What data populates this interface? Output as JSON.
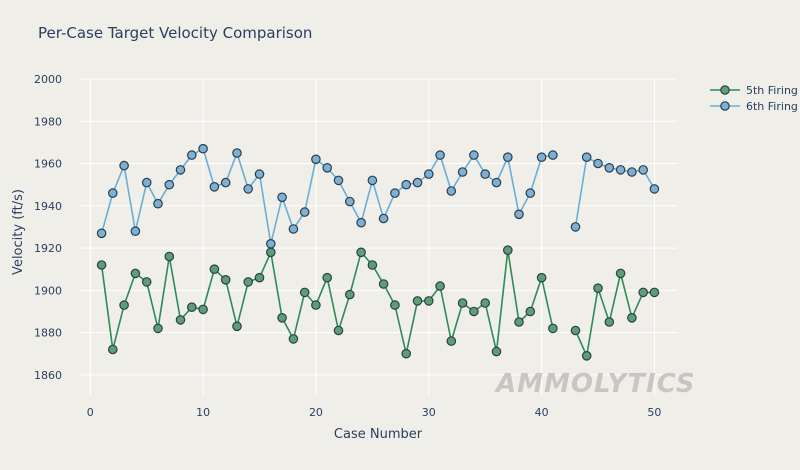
{
  "chart_data": {
    "type": "line",
    "title": "Per-Case Target Velocity Comparison",
    "xlabel": "Case Number",
    "ylabel": "Velocity (ft/s)",
    "xlim": [
      -1,
      52
    ],
    "ylim": [
      1850,
      2000
    ],
    "xticks": [
      0,
      10,
      20,
      30,
      40,
      50
    ],
    "yticks": [
      1860,
      1880,
      1900,
      1920,
      1940,
      1960,
      1980,
      2000
    ],
    "grid": true,
    "legend_position": "top-right",
    "watermark": "AMMOLYTICS",
    "series": [
      {
        "name": "5th Firing",
        "line_color": "#2e8b57",
        "marker_color": "#5f9e73",
        "x": [
          1,
          2,
          3,
          4,
          5,
          6,
          7,
          8,
          9,
          10,
          11,
          12,
          13,
          14,
          15,
          16,
          17,
          18,
          19,
          20,
          21,
          22,
          23,
          24,
          25,
          26,
          27,
          28,
          29,
          30,
          31,
          32,
          33,
          34,
          35,
          36,
          37,
          38,
          39,
          40,
          41,
          43,
          44,
          45,
          46,
          47,
          48,
          49,
          50
        ],
        "y": [
          1912,
          1872,
          1893,
          1908,
          1904,
          1882,
          1916,
          1886,
          1892,
          1891,
          1910,
          1905,
          1883,
          1904,
          1906,
          1918,
          1887,
          1877,
          1899,
          1893,
          1906,
          1881,
          1898,
          1918,
          1912,
          1903,
          1893,
          1870,
          1895,
          1895,
          1902,
          1876,
          1894,
          1890,
          1894,
          1871,
          1919,
          1885,
          1890,
          1906,
          1882,
          1881,
          1869,
          1901,
          1885,
          1908,
          1887,
          1899,
          1899
        ]
      },
      {
        "name": "6th Firing",
        "line_color": "#6aaed6",
        "marker_color": "#7fb0d4",
        "x": [
          1,
          2,
          3,
          4,
          5,
          6,
          7,
          8,
          9,
          10,
          11,
          12,
          13,
          14,
          15,
          16,
          17,
          18,
          19,
          20,
          21,
          22,
          23,
          24,
          25,
          26,
          27,
          28,
          29,
          30,
          31,
          32,
          33,
          34,
          35,
          36,
          37,
          38,
          39,
          40,
          41,
          43,
          44,
          45,
          46,
          47,
          48,
          49,
          50
        ],
        "y": [
          1927,
          1946,
          1959,
          1928,
          1951,
          1941,
          1950,
          1957,
          1964,
          1967,
          1949,
          1951,
          1965,
          1948,
          1955,
          1922,
          1944,
          1929,
          1937,
          1962,
          1958,
          1952,
          1942,
          1932,
          1952,
          1934,
          1946,
          1950,
          1951,
          1955,
          1964,
          1947,
          1956,
          1964,
          1955,
          1951,
          1963,
          1936,
          1946,
          1963,
          1964,
          1930,
          1963,
          1960,
          1958,
          1957,
          1956,
          1957,
          1948
        ]
      }
    ]
  }
}
